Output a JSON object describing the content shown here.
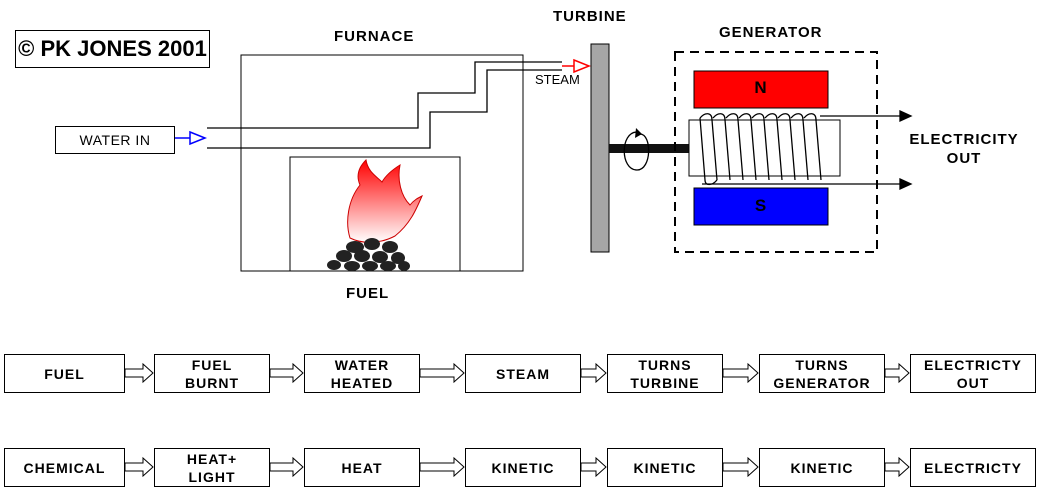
{
  "copyright": "© PK JONES 2001",
  "labels": {
    "furnace": "FURNACE",
    "turbine": "TURBINE",
    "generator": "GENERATOR",
    "fuel": "FUEL",
    "steam": "STEAM",
    "water_in": "WATER IN",
    "electricity_out": "ELECTRICITY\nOUT",
    "north": "N",
    "south": "S"
  },
  "process_row": [
    "FUEL",
    "FUEL\nBURNT",
    "WATER\nHEATED",
    "STEAM",
    "TURNS\nTURBINE",
    "TURNS\nGENERATOR",
    "ELECTRICTY\nOUT"
  ],
  "energy_row": [
    "CHEMICAL",
    "HEAT+\nLIGHT",
    "HEAT",
    "KINETIC",
    "KINETIC",
    "KINETIC",
    "ELECTRICTY"
  ],
  "colors": {
    "north": "#ff0000",
    "south": "#0000ff",
    "turbine": "#a6a6a6",
    "flame": "#ff0000"
  }
}
